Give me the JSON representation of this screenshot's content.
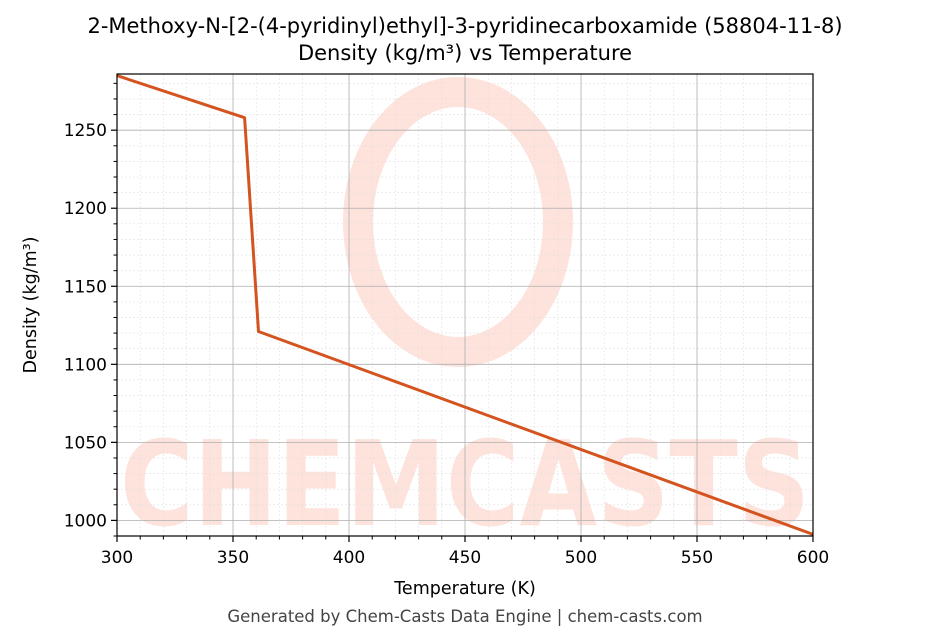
{
  "title_line1": "2-Methoxy-N-[2-(4-pyridinyl)ethyl]-3-pyridinecarboxamide (58804-11-8)",
  "title_line2": "Density (kg/m³) vs Temperature",
  "footer": "Generated by Chem-Casts Data Engine | chem-casts.com",
  "watermark": {
    "text": "CHEMCASTS",
    "color": "#fde3dc"
  },
  "colors": {
    "line": "#d4541f",
    "grid_major": "#b0b0b0",
    "grid_minor": "#e0e0e0"
  },
  "chart_data": {
    "type": "line",
    "title": "2-Methoxy-N-[2-(4-pyridinyl)ethyl]-3-pyridinecarboxamide (58804-11-8) Density (kg/m³) vs Temperature",
    "xlabel": "Temperature (K)",
    "ylabel": "Density (kg/m³)",
    "xlim": [
      300,
      600
    ],
    "ylim": [
      990,
      1286
    ],
    "xticks": [
      300,
      350,
      400,
      450,
      500,
      550,
      600
    ],
    "yticks": [
      1000,
      1050,
      1100,
      1150,
      1200,
      1250
    ],
    "grid": true,
    "series": [
      {
        "x": [
          300,
          355,
          361,
          600
        ],
        "y": [
          1285,
          1258,
          1121,
          991
        ]
      }
    ]
  }
}
